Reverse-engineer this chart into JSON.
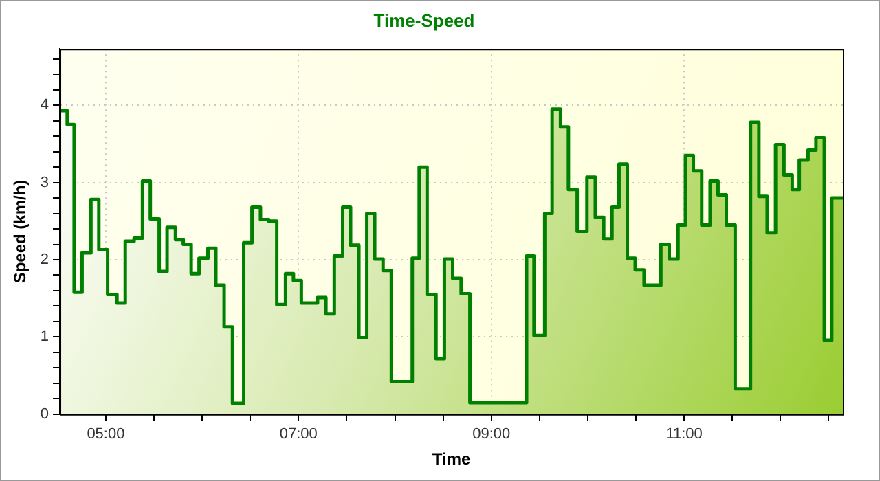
{
  "chart_data": {
    "type": "area",
    "title": "Time-Speed",
    "xlabel": "Time",
    "ylabel": "Speed (km/h)",
    "x": [
      4.523,
      4.6,
      4.6,
      4.672,
      4.672,
      4.754,
      4.754,
      4.846,
      4.846,
      4.928,
      4.928,
      5.019,
      5.019,
      5.116,
      5.116,
      5.202,
      5.202,
      5.294,
      5.294,
      5.381,
      5.381,
      5.462,
      5.462,
      5.554,
      5.554,
      5.636,
      5.636,
      5.723,
      5.723,
      5.804,
      5.804,
      5.886,
      5.886,
      5.968,
      5.968,
      6.06,
      6.06,
      6.142,
      6.142,
      6.228,
      6.228,
      6.315,
      6.315,
      6.431,
      6.431,
      6.517,
      6.517,
      6.605,
      6.605,
      6.692,
      6.692,
      6.774,
      6.774,
      6.865,
      6.865,
      6.947,
      6.947,
      7.029,
      7.029,
      7.197,
      7.197,
      7.284,
      7.284,
      7.371,
      7.371,
      7.458,
      7.458,
      7.54,
      7.54,
      7.626,
      7.626,
      7.708,
      7.708,
      7.79,
      7.79,
      7.877,
      7.877,
      7.963,
      7.963,
      8.18,
      8.18,
      8.252,
      8.252,
      8.334,
      8.334,
      8.426,
      8.426,
      8.513,
      8.513,
      8.599,
      8.599,
      8.687,
      8.687,
      8.778,
      8.778,
      9.366,
      9.366,
      9.443,
      9.443,
      9.554,
      9.554,
      9.631,
      9.631,
      9.718,
      9.718,
      9.8,
      9.8,
      9.891,
      9.891,
      9.992,
      9.992,
      10.079,
      10.079,
      10.166,
      10.166,
      10.252,
      10.252,
      10.325,
      10.325,
      10.411,
      10.411,
      10.493,
      10.493,
      10.585,
      10.585,
      10.759,
      10.759,
      10.846,
      10.846,
      10.937,
      10.937,
      11.014,
      11.014,
      11.096,
      11.096,
      11.183,
      11.183,
      11.27,
      11.27,
      11.352,
      11.352,
      11.438,
      11.438,
      11.53,
      11.53,
      11.689,
      11.689,
      11.776,
      11.776,
      11.862,
      11.862,
      11.949,
      11.949,
      12.036,
      12.036,
      12.122,
      12.122,
      12.195,
      12.195,
      12.286,
      12.286,
      12.368,
      12.368,
      12.455,
      12.455,
      12.532,
      12.532,
      12.647
    ],
    "series": [
      {
        "color": "#008000",
        "values": [
          3.93,
          3.93,
          3.75,
          3.75,
          1.58,
          1.58,
          2.09,
          2.09,
          2.78,
          2.78,
          2.13,
          2.13,
          1.55,
          1.55,
          1.44,
          1.44,
          2.24,
          2.24,
          2.28,
          2.28,
          3.02,
          3.02,
          2.53,
          2.53,
          1.85,
          1.85,
          2.42,
          2.42,
          2.26,
          2.26,
          2.2,
          2.2,
          1.82,
          1.82,
          2.02,
          2.02,
          2.15,
          2.15,
          1.67,
          1.67,
          1.13,
          1.13,
          0.14,
          0.14,
          2.22,
          2.22,
          2.68,
          2.68,
          2.52,
          2.52,
          2.5,
          2.5,
          1.42,
          1.42,
          1.82,
          1.82,
          1.73,
          1.73,
          1.44,
          1.44,
          1.51,
          1.51,
          1.3,
          1.3,
          2.05,
          2.05,
          2.68,
          2.68,
          2.19,
          2.19,
          0.99,
          0.99,
          2.6,
          2.6,
          2.01,
          2.01,
          1.86,
          1.86,
          0.42,
          0.42,
          2.02,
          2.02,
          3.2,
          3.2,
          1.55,
          1.55,
          0.72,
          0.72,
          2.01,
          2.01,
          1.76,
          1.76,
          1.56,
          1.56,
          0.15,
          0.15,
          2.05,
          2.05,
          1.02,
          1.02,
          2.6,
          2.6,
          3.95,
          3.95,
          3.72,
          3.72,
          2.91,
          2.91,
          2.37,
          2.37,
          3.07,
          3.07,
          2.55,
          2.55,
          2.27,
          2.27,
          2.68,
          2.68,
          3.24,
          3.24,
          2.02,
          2.02,
          1.87,
          1.87,
          1.67,
          1.67,
          2.2,
          2.2,
          2.01,
          2.01,
          2.45,
          2.45,
          3.35,
          3.35,
          3.15,
          3.15,
          2.45,
          2.45,
          3.02,
          3.02,
          2.84,
          2.84,
          2.45,
          2.45,
          0.33,
          0.33,
          3.78,
          3.78,
          2.82,
          2.82,
          2.35,
          2.35,
          3.49,
          3.49,
          3.1,
          3.1,
          2.91,
          2.91,
          3.29,
          3.29,
          3.42,
          3.42,
          3.58,
          3.58,
          0.96,
          0.96,
          2.8,
          2.8
        ]
      }
    ],
    "xlim": [
      4.523,
      12.647
    ],
    "xticks": [
      {
        "value": 5,
        "label": "05:00"
      },
      {
        "value": 5.5,
        "label": null
      },
      {
        "value": 6,
        "label": null
      },
      {
        "value": 6.5,
        "label": null
      },
      {
        "value": 7,
        "label": "07:00"
      },
      {
        "value": 7.5,
        "label": null
      },
      {
        "value": 8,
        "label": null
      },
      {
        "value": 8.5,
        "label": null
      },
      {
        "value": 9,
        "label": "09:00"
      },
      {
        "value": 9.5,
        "label": null
      },
      {
        "value": 10,
        "label": null
      },
      {
        "value": 10.5,
        "label": null
      },
      {
        "value": 11,
        "label": "11:00"
      },
      {
        "value": 11.5,
        "label": null
      },
      {
        "value": 12,
        "label": null
      },
      {
        "value": 12.5,
        "label": null
      }
    ],
    "ylim": [
      0,
      4.73
    ],
    "yticks": [
      0,
      {
        "value": 0.2,
        "label": null
      },
      {
        "value": 0.4,
        "label": null
      },
      {
        "value": 0.6,
        "label": null
      },
      {
        "value": 0.8,
        "label": null
      },
      1,
      {
        "value": 1.2,
        "label": null
      },
      {
        "value": 1.4,
        "label": null
      },
      {
        "value": 1.6,
        "label": null
      },
      {
        "value": 1.8,
        "label": null
      },
      2,
      {
        "value": 2.2,
        "label": null
      },
      {
        "value": 2.4,
        "label": null
      },
      {
        "value": 2.6,
        "label": null
      },
      {
        "value": 2.8,
        "label": null
      },
      3,
      {
        "value": 3.2,
        "label": null
      },
      {
        "value": 3.4,
        "label": null
      },
      {
        "value": 3.6,
        "label": null
      },
      {
        "value": 3.8,
        "label": null
      },
      4,
      {
        "value": 4.2,
        "label": null
      },
      {
        "value": 4.4,
        "label": null
      },
      {
        "value": 4.6,
        "label": null
      }
    ],
    "grid": true,
    "line_style": "solid",
    "marker": "none"
  }
}
